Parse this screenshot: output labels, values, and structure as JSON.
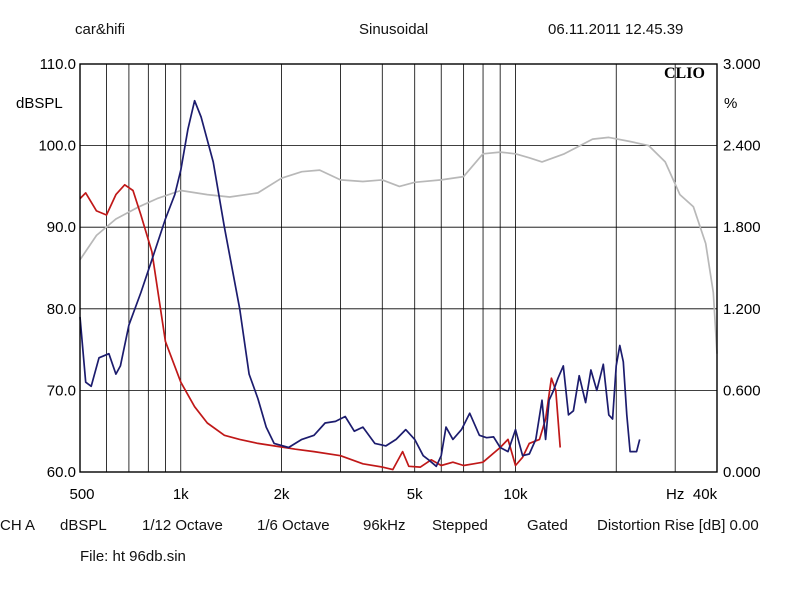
{
  "header": {
    "brand": "car&hifi",
    "mode": "Sinusoidal",
    "datetime": "06.11.2011 12.45.39"
  },
  "footer": {
    "channel": "CH A",
    "unit": "dBSPL",
    "smoothing1": "1/12 Octave",
    "smoothing2": "1/6 Octave",
    "rate": "96kHz",
    "sweep": "Stepped",
    "window": "Gated",
    "distortion": "Distortion Rise [dB] 0.00",
    "file": "File: ht 96db.sin"
  },
  "chart_data": {
    "type": "line",
    "logo": "CLIO",
    "ylabel_left": "dBSPL",
    "ylabel_right": "%",
    "xlabel": "Hz",
    "x_scale": "log",
    "xlim": [
      500,
      40000
    ],
    "ylim_left": [
      60,
      110
    ],
    "ylim_right": [
      0,
      3
    ],
    "grid": true,
    "x_ticks": [
      {
        "value": 500,
        "label": "500"
      },
      {
        "value": 1000,
        "label": "1k"
      },
      {
        "value": 2000,
        "label": "2k"
      },
      {
        "value": 5000,
        "label": "5k"
      },
      {
        "value": 10000,
        "label": "10k"
      },
      {
        "value": 30000,
        "label": "Hz"
      },
      {
        "value": 40000,
        "label": "40k"
      }
    ],
    "y_ticks_left": [
      "60.0",
      "70.0",
      "80.0",
      "90.0",
      "100.0",
      "110.0"
    ],
    "y_ticks_right": [
      "0.000",
      "0.600",
      "1.200",
      "1.800",
      "2.400",
      "3.000"
    ],
    "series": [
      {
        "color": "#b8b8b8",
        "axis": "left",
        "points": [
          [
            500,
            86
          ],
          [
            560,
            89
          ],
          [
            640,
            91
          ],
          [
            750,
            92.5
          ],
          [
            850,
            93.5
          ],
          [
            1000,
            94.5
          ],
          [
            1200,
            94
          ],
          [
            1400,
            93.7
          ],
          [
            1700,
            94.2
          ],
          [
            2000,
            96
          ],
          [
            2300,
            96.8
          ],
          [
            2600,
            97
          ],
          [
            3000,
            95.8
          ],
          [
            3500,
            95.6
          ],
          [
            4000,
            95.8
          ],
          [
            4500,
            95
          ],
          [
            5000,
            95.5
          ],
          [
            6000,
            95.8
          ],
          [
            7000,
            96.2
          ],
          [
            8000,
            99
          ],
          [
            9000,
            99.2
          ],
          [
            10000,
            99
          ],
          [
            11000,
            98.5
          ],
          [
            12000,
            98
          ],
          [
            14000,
            99
          ],
          [
            17000,
            100.8
          ],
          [
            19000,
            101
          ],
          [
            22000,
            100.5
          ],
          [
            25000,
            100
          ],
          [
            28000,
            98
          ],
          [
            31000,
            94
          ],
          [
            34000,
            92.5
          ],
          [
            37000,
            88
          ],
          [
            39000,
            82
          ],
          [
            40000,
            74.5
          ]
        ]
      },
      {
        "color": "#c01818",
        "axis": "left",
        "points": [
          [
            500,
            93.5
          ],
          [
            520,
            94.2
          ],
          [
            560,
            92
          ],
          [
            600,
            91.5
          ],
          [
            640,
            94
          ],
          [
            680,
            95.2
          ],
          [
            720,
            94.5
          ],
          [
            760,
            91.5
          ],
          [
            820,
            87
          ],
          [
            900,
            76
          ],
          [
            1000,
            71
          ],
          [
            1100,
            68
          ],
          [
            1200,
            66
          ],
          [
            1350,
            64.5
          ],
          [
            1500,
            64
          ],
          [
            1700,
            63.5
          ],
          [
            1900,
            63.2
          ],
          [
            2200,
            62.8
          ],
          [
            2500,
            62.5
          ],
          [
            3000,
            62
          ],
          [
            3500,
            61
          ],
          [
            4000,
            60.6
          ],
          [
            4300,
            60.3
          ],
          [
            4600,
            62.5
          ],
          [
            4800,
            60.7
          ],
          [
            5200,
            60.6
          ],
          [
            5600,
            61.5
          ],
          [
            6000,
            60.8
          ],
          [
            6500,
            61.2
          ],
          [
            7000,
            60.8
          ],
          [
            7500,
            61
          ],
          [
            8000,
            61.2
          ],
          [
            9000,
            63
          ],
          [
            9500,
            64
          ],
          [
            10000,
            60.8
          ],
          [
            10500,
            61.8
          ],
          [
            11000,
            63.5
          ],
          [
            11800,
            64
          ],
          [
            12300,
            66.5
          ],
          [
            12800,
            71.5
          ],
          [
            13200,
            70
          ],
          [
            13600,
            63
          ]
        ]
      },
      {
        "color": "#1c1c6e",
        "axis": "left",
        "points": [
          [
            500,
            79
          ],
          [
            520,
            71
          ],
          [
            540,
            70.5
          ],
          [
            570,
            74
          ],
          [
            610,
            74.5
          ],
          [
            640,
            72
          ],
          [
            660,
            73
          ],
          [
            700,
            78
          ],
          [
            760,
            82
          ],
          [
            820,
            86
          ],
          [
            900,
            91
          ],
          [
            960,
            94
          ],
          [
            1000,
            97
          ],
          [
            1050,
            102
          ],
          [
            1100,
            105.5
          ],
          [
            1150,
            103.5
          ],
          [
            1250,
            98
          ],
          [
            1350,
            90
          ],
          [
            1500,
            80
          ],
          [
            1600,
            72
          ],
          [
            1700,
            69
          ],
          [
            1800,
            65.5
          ],
          [
            1900,
            63.5
          ],
          [
            2100,
            63
          ],
          [
            2300,
            64
          ],
          [
            2500,
            64.5
          ],
          [
            2700,
            66
          ],
          [
            2900,
            66.2
          ],
          [
            3100,
            66.8
          ],
          [
            3300,
            65
          ],
          [
            3500,
            65.5
          ],
          [
            3800,
            63.5
          ],
          [
            4100,
            63.2
          ],
          [
            4400,
            64
          ],
          [
            4700,
            65.2
          ],
          [
            5000,
            64
          ],
          [
            5300,
            62
          ],
          [
            5500,
            61.5
          ],
          [
            5800,
            60.7
          ],
          [
            6000,
            62
          ],
          [
            6200,
            65.5
          ],
          [
            6500,
            64
          ],
          [
            6900,
            65.2
          ],
          [
            7300,
            67.2
          ],
          [
            7800,
            64.5
          ],
          [
            8200,
            64.2
          ],
          [
            8600,
            64.3
          ],
          [
            9000,
            63
          ],
          [
            9500,
            62.5
          ],
          [
            10000,
            65.2
          ],
          [
            10500,
            62
          ],
          [
            11000,
            62.2
          ],
          [
            11500,
            64
          ],
          [
            12000,
            68.8
          ],
          [
            12300,
            64
          ],
          [
            12600,
            68.8
          ],
          [
            13000,
            70
          ],
          [
            13400,
            71.5
          ],
          [
            13900,
            73
          ],
          [
            14400,
            67
          ],
          [
            14900,
            67.5
          ],
          [
            15500,
            71.8
          ],
          [
            16200,
            68.5
          ],
          [
            16800,
            72.5
          ],
          [
            17500,
            70
          ],
          [
            18300,
            73.2
          ],
          [
            19000,
            67
          ],
          [
            19500,
            66.5
          ],
          [
            20000,
            73
          ],
          [
            20500,
            75.5
          ],
          [
            21000,
            73.5
          ],
          [
            21500,
            67
          ],
          [
            22000,
            62.5
          ],
          [
            23000,
            62.5
          ],
          [
            23500,
            64
          ]
        ]
      }
    ]
  }
}
